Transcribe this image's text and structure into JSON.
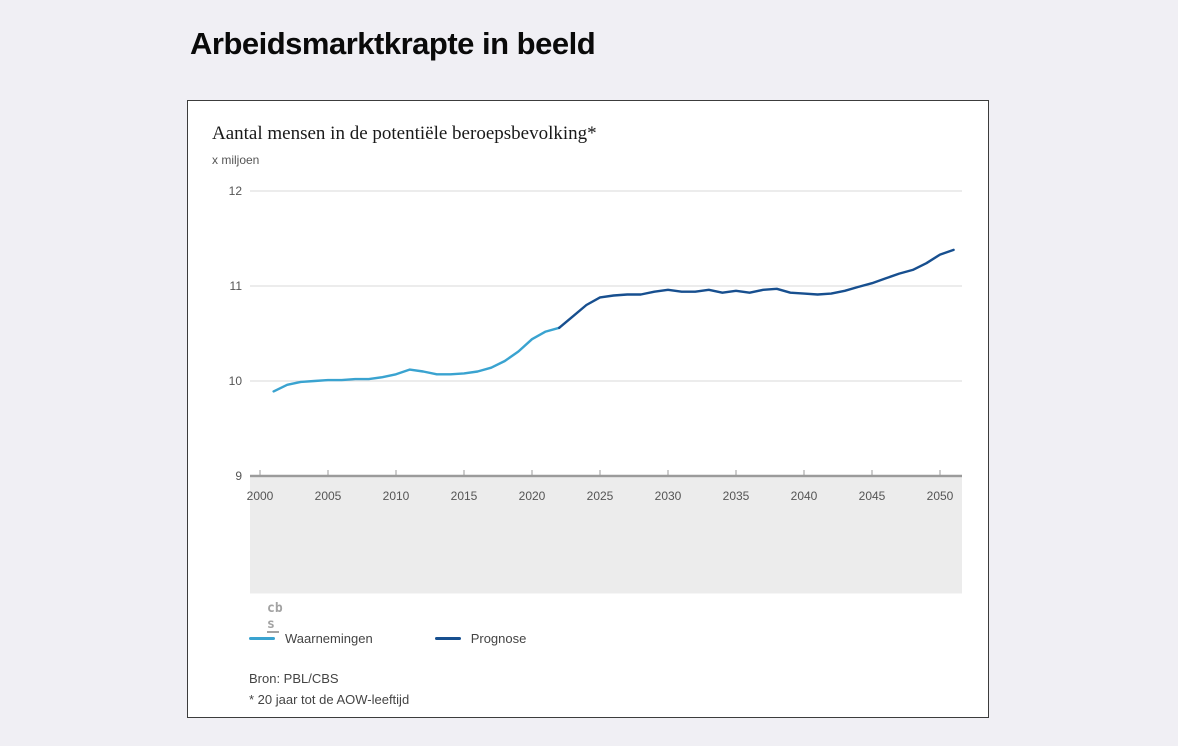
{
  "page": {
    "title": "Arbeidsmarktkrapte in beeld",
    "background_color": "#f0eff4"
  },
  "chart": {
    "title": "Aantal mensen in de potentiële beroepsbevolking*",
    "unit_label": "x miljoen",
    "source": "Bron: PBL/CBS",
    "footnote": "* 20 jaar tot de AOW-leeftijd",
    "logo_text_top": "cb",
    "logo_text_bottom": "s"
  },
  "chart_data": {
    "type": "line",
    "title": "Aantal mensen in de potentiële beroepsbevolking*",
    "ylabel": "x miljoen",
    "xlabel": "",
    "ylim": [
      9,
      12
    ],
    "yticks": [
      9,
      10,
      11,
      12
    ],
    "xticks": [
      2000,
      2005,
      2010,
      2015,
      2020,
      2025,
      2030,
      2035,
      2040,
      2045,
      2050
    ],
    "grid": true,
    "legend_position": "bottom",
    "colors": {
      "waarnemingen": "#3aa3d0",
      "prognose": "#174f8f",
      "gridline": "#d8d8d8",
      "axis": "#9b9b9b",
      "footer_band": "#ececec"
    },
    "series": [
      {
        "name": "Waarnemingen",
        "color": "#3aa3d0",
        "x": [
          2001,
          2002,
          2003,
          2004,
          2005,
          2006,
          2007,
          2008,
          2009,
          2010,
          2011,
          2012,
          2013,
          2014,
          2015,
          2016,
          2017,
          2018,
          2019,
          2020,
          2021,
          2022
        ],
        "values": [
          9.89,
          9.96,
          9.99,
          10.0,
          10.01,
          10.01,
          10.02,
          10.02,
          10.04,
          10.07,
          10.12,
          10.1,
          10.07,
          10.07,
          10.08,
          10.1,
          10.14,
          10.21,
          10.31,
          10.44,
          10.52,
          10.56
        ]
      },
      {
        "name": "Prognose",
        "color": "#174f8f",
        "x": [
          2022,
          2023,
          2024,
          2025,
          2026,
          2027,
          2028,
          2029,
          2030,
          2031,
          2032,
          2033,
          2034,
          2035,
          2036,
          2037,
          2038,
          2039,
          2040,
          2041,
          2042,
          2043,
          2044,
          2045,
          2046,
          2047,
          2048,
          2049,
          2050,
          2051
        ],
        "values": [
          10.56,
          10.68,
          10.8,
          10.88,
          10.9,
          10.91,
          10.91,
          10.94,
          10.96,
          10.94,
          10.94,
          10.96,
          10.93,
          10.95,
          10.93,
          10.96,
          10.97,
          10.93,
          10.92,
          10.91,
          10.92,
          10.95,
          10.99,
          11.03,
          11.08,
          11.13,
          11.17,
          11.24,
          11.33,
          11.38
        ]
      }
    ]
  }
}
